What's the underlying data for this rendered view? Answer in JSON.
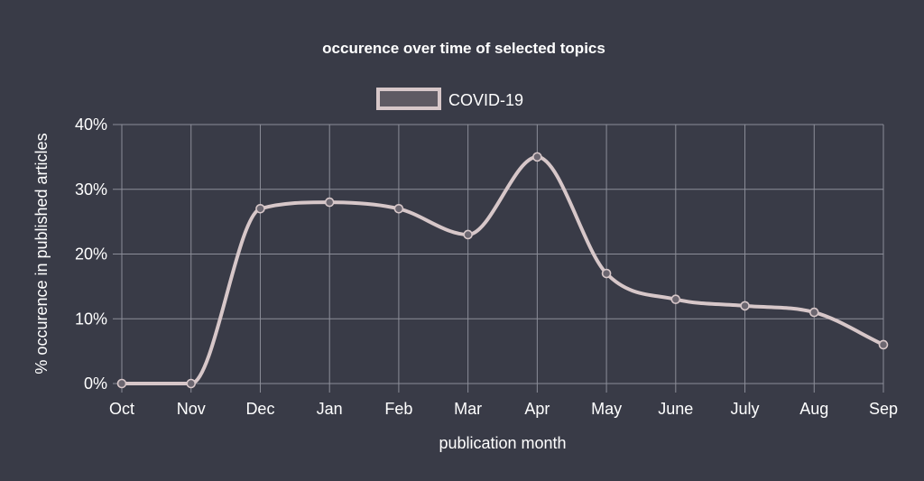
{
  "chart_data": {
    "type": "line",
    "title": "occurence over time of selected topics",
    "xlabel": "publication month",
    "ylabel": "% occurence in published articles",
    "categories": [
      "Oct",
      "Nov",
      "Dec",
      "Jan",
      "Feb",
      "Mar",
      "Apr",
      "May",
      "June",
      "July",
      "Aug",
      "Sep"
    ],
    "y_ticks": [
      "0%",
      "10%",
      "20%",
      "30%",
      "40%"
    ],
    "ylim": [
      0,
      40
    ],
    "grid": true,
    "legend_position": "top-center",
    "series": [
      {
        "name": "COVID-19",
        "color": "#d7c7c9",
        "values": [
          0,
          0,
          27,
          28,
          27,
          23,
          35,
          17,
          13,
          12,
          11,
          6
        ]
      }
    ]
  }
}
